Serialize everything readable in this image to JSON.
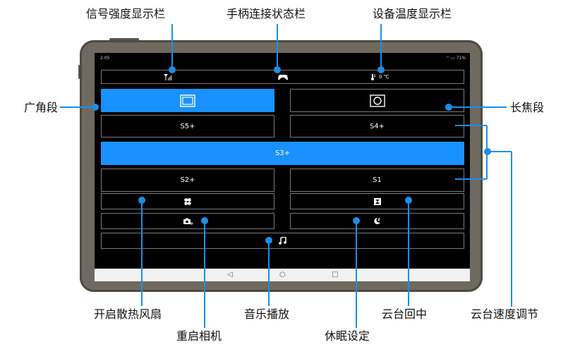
{
  "callouts": {
    "signal": "信号强度显示栏",
    "gamepad": "手柄连接状态栏",
    "temperature": "设备温度显示栏",
    "wide": "广角段",
    "tele": "长焦段",
    "fan": "开启散热风扇",
    "restart_camera": "重启相机",
    "music": "音乐播放",
    "sleep": "休眠设定",
    "gimbal_center": "云台回中",
    "gimbal_speed": "云台速度调节"
  },
  "status": {
    "time": "2:05",
    "battery": "71%"
  },
  "info_bar": {
    "temperature": "0 ℃"
  },
  "buttons": {
    "s5": "S5+",
    "s4": "S4+",
    "s3": "S3+",
    "s2": "S2+",
    "s1": "S1"
  },
  "colors": {
    "accent": "#1992ff",
    "callout": "#1a8fe8",
    "device_frame": "#6f6a5f"
  },
  "icons": {
    "signal": "signal-icon",
    "gamepad": "gamepad-icon",
    "thermometer": "thermometer-icon",
    "wide": "wide-angle-icon",
    "tele": "telephoto-icon",
    "fan": "fan-icon",
    "center": "gimbal-center-icon",
    "camera": "camera-restart-icon",
    "sleep": "sleep-moon-icon",
    "music": "music-note-icon"
  }
}
